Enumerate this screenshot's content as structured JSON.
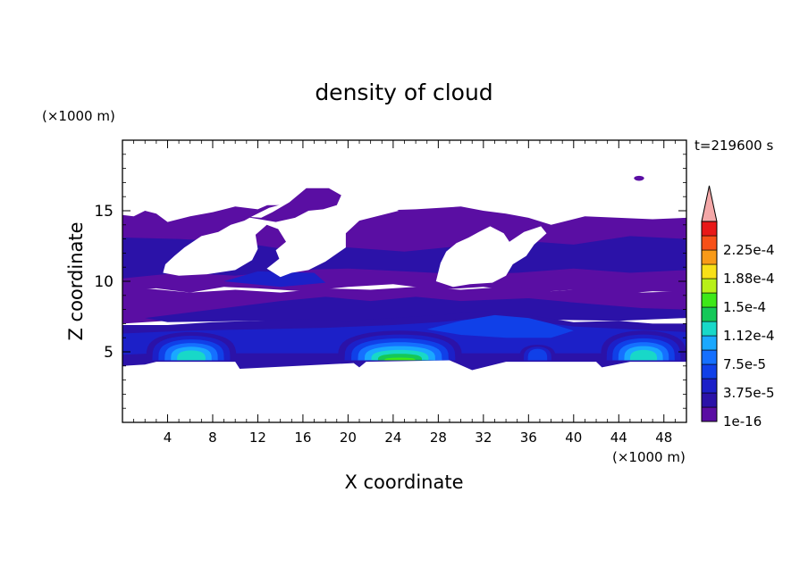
{
  "chart_data": {
    "type": "heatmap",
    "title": "density of cloud",
    "xlabel": "X coordinate",
    "ylabel": "Z coordinate",
    "x_unit_label": "(×1000 m)",
    "y_unit_label": "(×1000 m)",
    "time_label": "t=219600 s",
    "x_range": [
      0,
      50
    ],
    "y_range": [
      0,
      20
    ],
    "x_ticks": [
      4,
      8,
      12,
      16,
      20,
      24,
      28,
      32,
      36,
      40,
      44,
      48
    ],
    "y_ticks": [
      5,
      10,
      15
    ],
    "grid": false,
    "colorbar": {
      "labels": [
        "1e-16",
        "3.75e-5",
        "7.5e-5",
        "1.12e-4",
        "1.5e-4",
        "1.88e-4",
        "2.25e-4"
      ],
      "levels": [
        1e-16,
        1.875e-05,
        3.75e-05,
        5.625e-05,
        7.5e-05,
        9.375e-05,
        0.0001125,
        0.00013125,
        0.00015,
        0.00016875,
        0.0001875,
        0.00020625,
        0.000225,
        0.00024375
      ],
      "colors": [
        "#5a0ea3",
        "#2b12a8",
        "#1c20c8",
        "#1040e8",
        "#1570ff",
        "#1aa8ff",
        "#18d8c8",
        "#15c858",
        "#3ee818",
        "#b8f018",
        "#f8e018",
        "#f89a18",
        "#f85018",
        "#e81818"
      ],
      "extend_color": "#f4a8a8"
    },
    "regions": [
      {
        "name": "upper cloud deck",
        "x_range": [
          0,
          50
        ],
        "z_range": [
          9.5,
          15
        ],
        "level": "1e-16"
      },
      {
        "name": "isolated cloud element",
        "x": 45.8,
        "z": 17.3,
        "level": "1e-16"
      },
      {
        "name": "low cloud band",
        "x_range": [
          0,
          50
        ],
        "z_range": [
          4,
          7
        ],
        "level": "1e-16 to 3.75e-5"
      },
      {
        "name": "convective core",
        "x_center": 6,
        "z_top": 6.3,
        "max_level": "1.12e-4"
      },
      {
        "name": "convective core",
        "x_center": 24.5,
        "z_top": 6.4,
        "max_level": "1.5e-4"
      },
      {
        "name": "convective core",
        "x_center": 46,
        "z_top": 6.4,
        "max_level": "1.12e-4"
      },
      {
        "name": "mid-level layer",
        "x_range": [
          26,
          40
        ],
        "z_range": [
          6,
          8
        ],
        "level": "3.75e-5 to 7.5e-5"
      }
    ]
  }
}
